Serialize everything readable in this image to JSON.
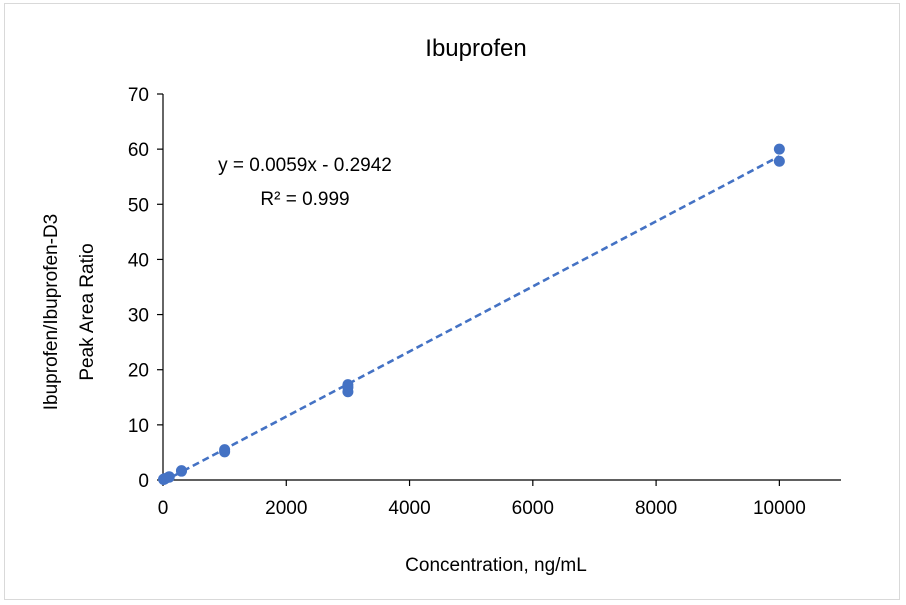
{
  "chart_data": {
    "type": "scatter",
    "title": "Ibuprofen",
    "xlabel": "Concentration, ng/mL",
    "ylabel_lines": [
      "Ibuprofen/Ibuprofen-D3",
      "Peak Area Ratio"
    ],
    "xlim": [
      0,
      11000
    ],
    "ylim": [
      0,
      70
    ],
    "xticks": [
      0,
      2000,
      4000,
      6000,
      8000,
      10000
    ],
    "yticks": [
      0,
      10,
      20,
      30,
      40,
      50,
      60,
      70
    ],
    "grid": false,
    "legend": "none",
    "series": [
      {
        "x": [
          10,
          10,
          30,
          30,
          100,
          100,
          300,
          300,
          1000,
          1000,
          3000,
          3000,
          3000,
          10000,
          10000
        ],
        "y": [
          0.1,
          0.15,
          0.2,
          0.25,
          0.5,
          0.6,
          1.6,
          1.7,
          5.1,
          5.5,
          16.0,
          16.8,
          17.3,
          57.8,
          60.0
        ]
      }
    ],
    "trendline": {
      "style": "dashed",
      "slope": 0.0059,
      "intercept": -0.2942,
      "equation": "y = 0.0059x - 0.2942",
      "r_squared": "R² = 0.999"
    },
    "colors": {
      "series": "#4472C4",
      "axis": "#000000",
      "border": "#d9d9d9"
    }
  }
}
